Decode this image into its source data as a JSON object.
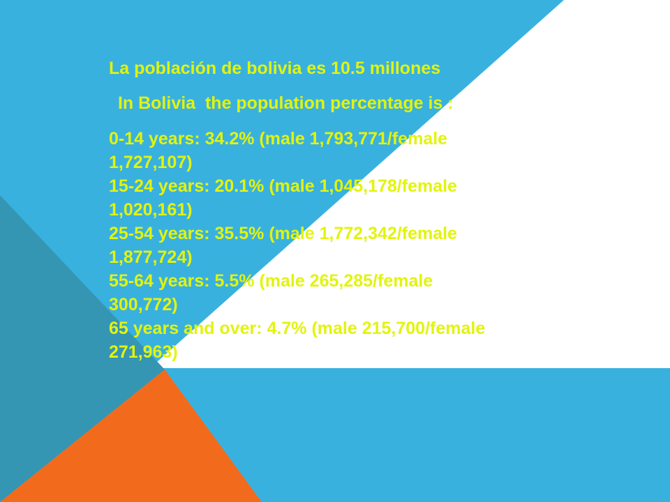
{
  "colors": {
    "background": "#39b1df",
    "white_panel": "#ffffff",
    "left_teal": "#3596b3",
    "bottom_orange": "#f26b1d",
    "text": "#e2f40d"
  },
  "slide": {
    "title": "La población de bolivia es 10.5 millones",
    "subtitle": " In Bolivia  the population percentage is :",
    "lines": [
      "0-14 years: 34.2% (male 1,793,771/female",
      "1,727,107)",
      "15-24 years: 20.1% (male 1,045,178/female",
      "1,020,161)",
      "25-54 years: 35.5% (male 1,772,342/female",
      "1,877,724)",
      "55-64 years: 5.5% (male 265,285/female",
      "300,772)",
      "65 years and over: 4.7% (male 215,700/female",
      "271,963)"
    ]
  }
}
